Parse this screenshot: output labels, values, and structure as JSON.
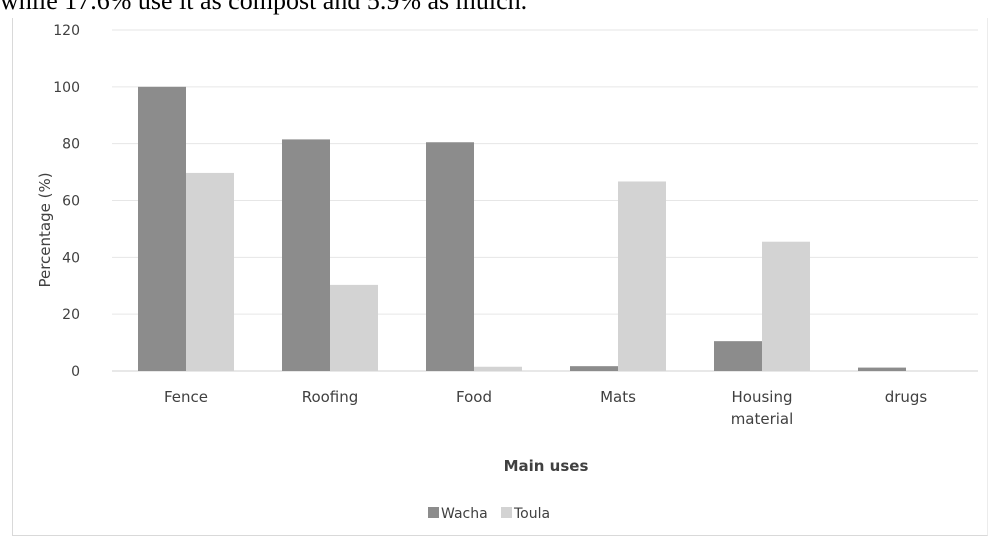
{
  "caption": "while 17.6% use it as compost and 5.9% as mulch.",
  "chart_data": {
    "type": "bar",
    "xlabel": "Main uses",
    "ylabel": "Percentage (%)",
    "ylim": [
      0,
      120
    ],
    "yticks": [
      0,
      20,
      40,
      60,
      80,
      100,
      120
    ],
    "grid": true,
    "legend_position": "bottom",
    "categories": [
      [
        "Fence"
      ],
      [
        "Roofing"
      ],
      [
        "Food"
      ],
      [
        "Mats"
      ],
      [
        "Housing",
        "material"
      ],
      [
        "drugs"
      ]
    ],
    "series": [
      {
        "name": "Wacha",
        "color": "#8c8c8c",
        "values": [
          100,
          81.5,
          80.5,
          1.7,
          10.5,
          1.2
        ]
      },
      {
        "name": "Toula",
        "color": "#d3d3d3",
        "values": [
          69.7,
          30.3,
          1.5,
          66.7,
          45.5,
          0
        ]
      }
    ]
  }
}
